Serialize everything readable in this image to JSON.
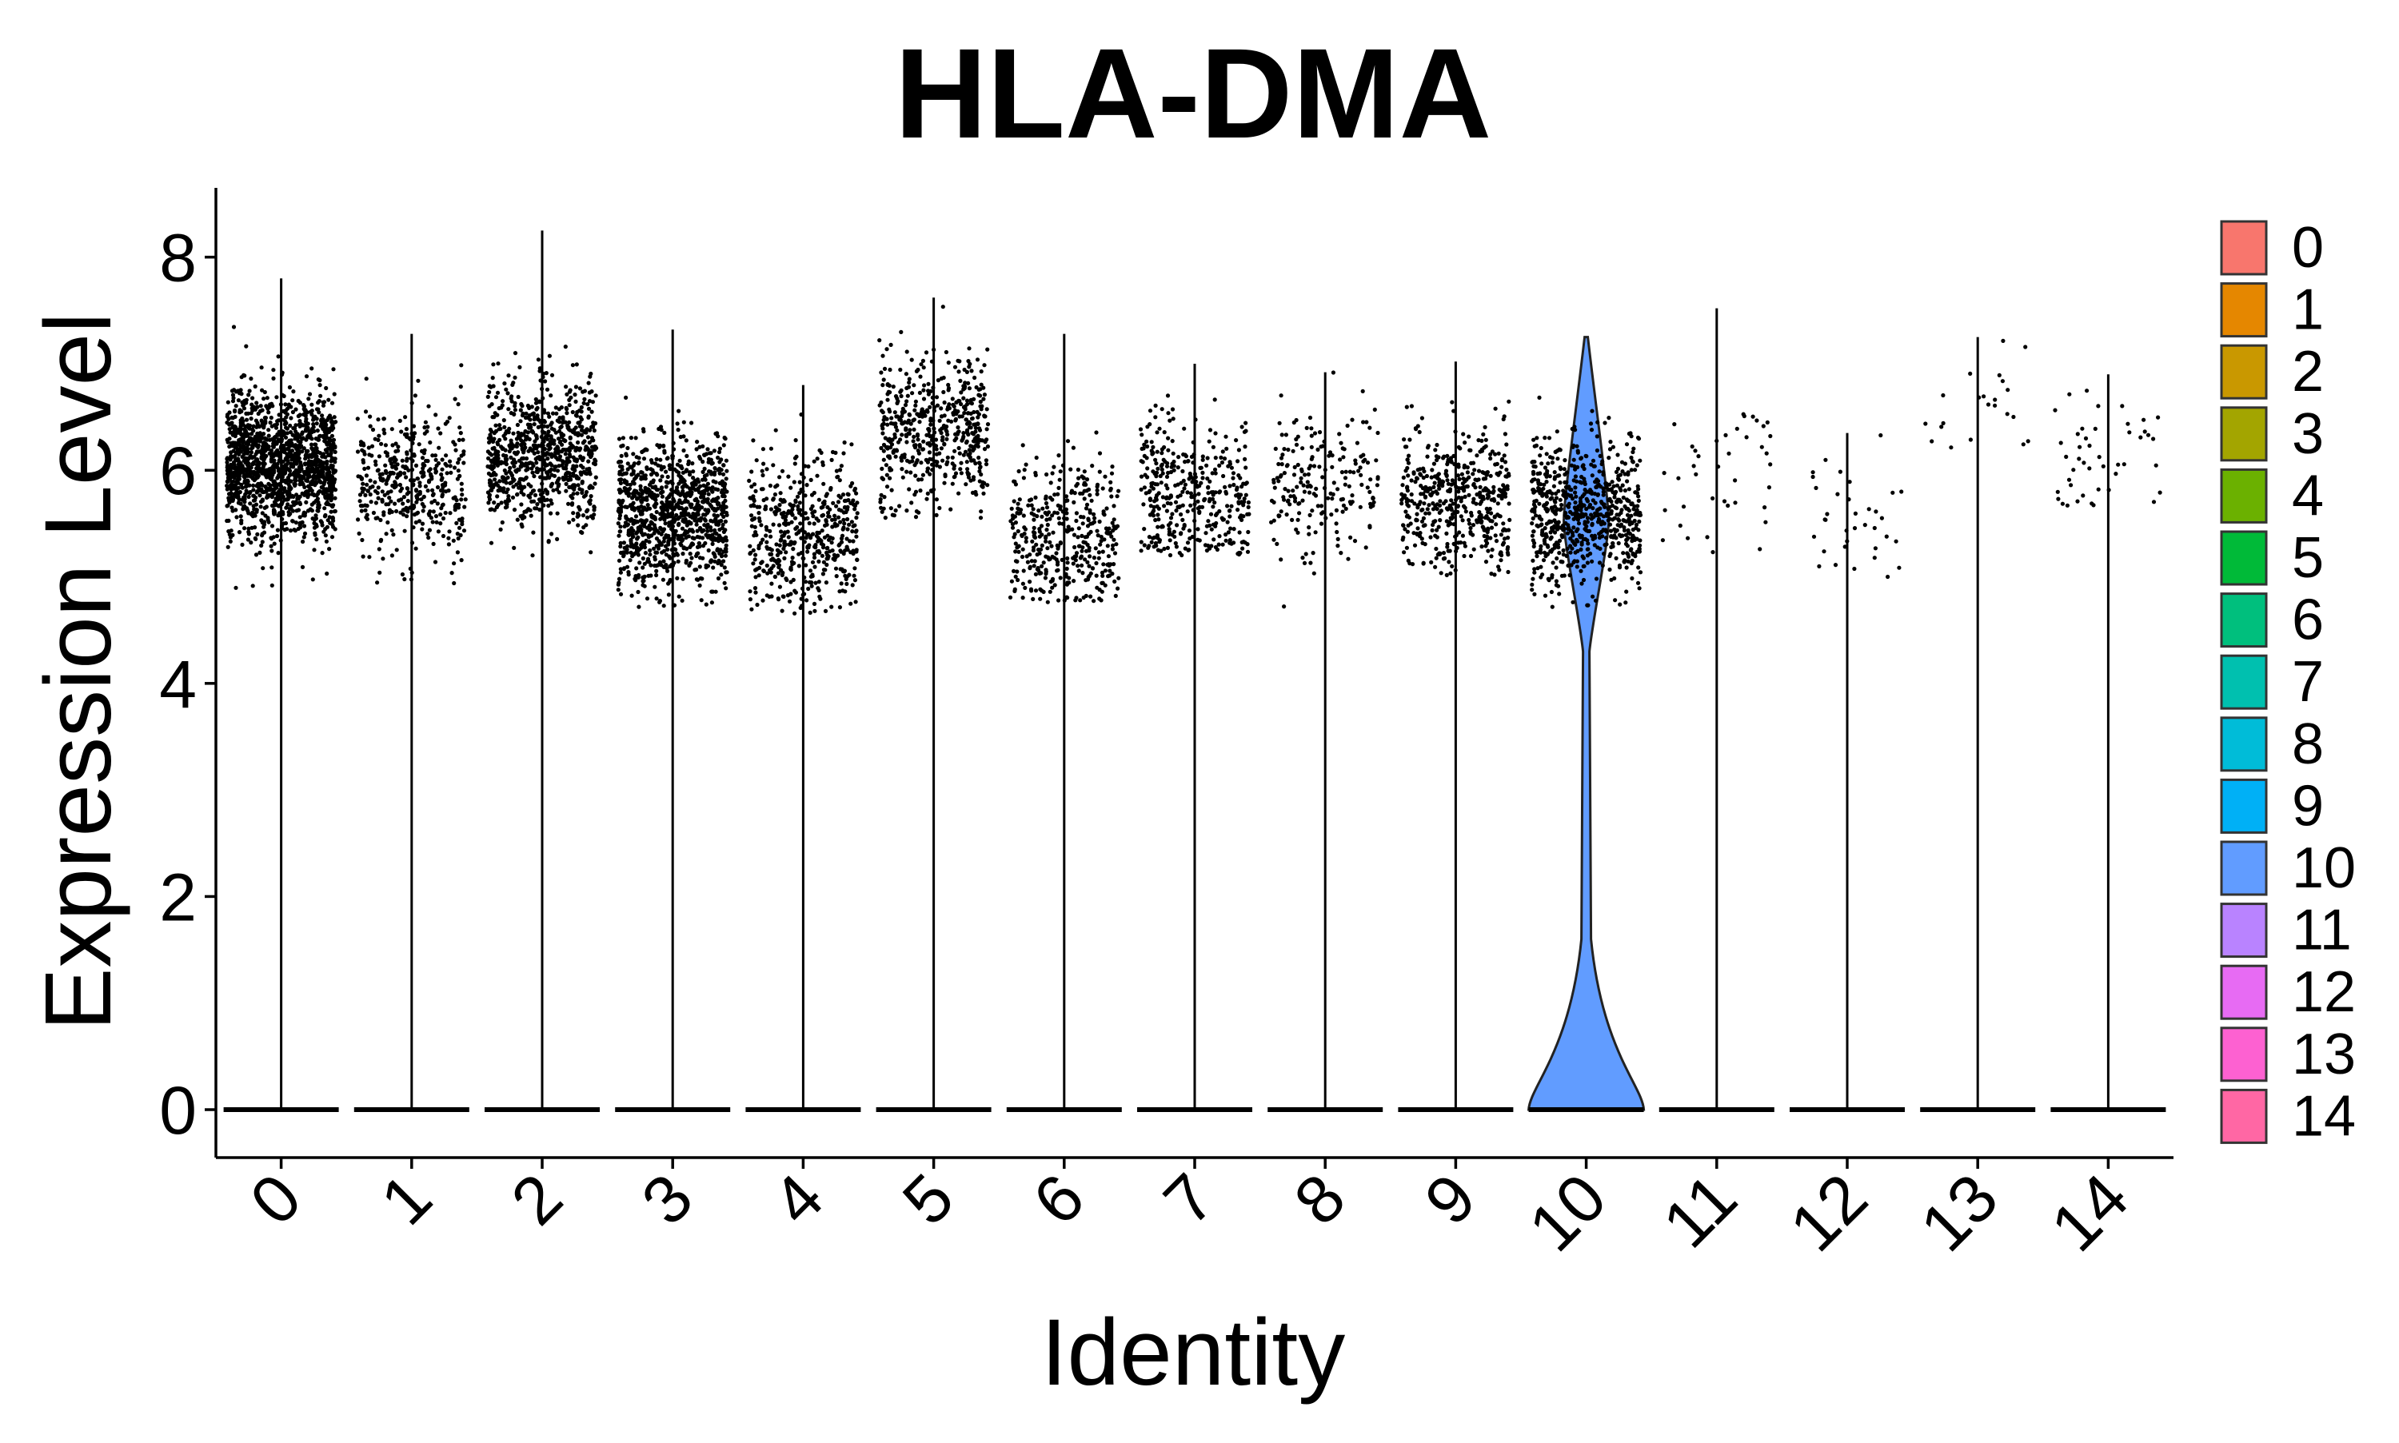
{
  "chart_data": {
    "type": "violin",
    "title": "HLA-DMA",
    "xlabel": "Identity",
    "ylabel": "Expression Level",
    "ylim": [
      -0.45,
      8.65
    ],
    "y_ticks": [
      0,
      2,
      4,
      6,
      8
    ],
    "categories": [
      "0",
      "1",
      "2",
      "3",
      "4",
      "5",
      "6",
      "7",
      "8",
      "9",
      "10",
      "11",
      "12",
      "13",
      "14"
    ],
    "colors": [
      "#F8766D",
      "#E58700",
      "#C99800",
      "#A3A500",
      "#6BB100",
      "#00BA38",
      "#00BF7D",
      "#00C0AF",
      "#00BCD8",
      "#00B0F6",
      "#619CFF",
      "#B983FF",
      "#E76BF3",
      "#FD61D1",
      "#FF67A4"
    ],
    "series": [
      {
        "cluster": "0",
        "max": 7.8,
        "cloud_center": 6.05,
        "cloud_low": 4.85,
        "cloud_high": 7.8,
        "points": 1500
      },
      {
        "cluster": "1",
        "max": 7.28,
        "cloud_center": 5.85,
        "cloud_low": 4.9,
        "cloud_high": 7.28,
        "points": 420
      },
      {
        "cluster": "2",
        "max": 8.25,
        "cloud_center": 6.15,
        "cloud_low": 5.2,
        "cloud_high": 8.25,
        "points": 800
      },
      {
        "cluster": "3",
        "max": 7.32,
        "cloud_center": 5.6,
        "cloud_low": 4.7,
        "cloud_high": 7.32,
        "points": 1000
      },
      {
        "cluster": "4",
        "max": 6.8,
        "cloud_center": 5.4,
        "cloud_low": 4.65,
        "cloud_high": 6.8,
        "points": 500
      },
      {
        "cluster": "5",
        "max": 7.62,
        "cloud_center": 6.35,
        "cloud_low": 5.55,
        "cloud_high": 7.62,
        "points": 520
      },
      {
        "cluster": "6",
        "max": 7.28,
        "cloud_center": 5.4,
        "cloud_low": 4.75,
        "cloud_high": 7.28,
        "points": 400
      },
      {
        "cluster": "7",
        "max": 7.0,
        "cloud_center": 5.75,
        "cloud_low": 5.2,
        "cloud_high": 7.0,
        "points": 380
      },
      {
        "cluster": "8",
        "max": 6.92,
        "cloud_center": 5.85,
        "cloud_low": 4.62,
        "cloud_high": 6.92,
        "points": 200
      },
      {
        "cluster": "9",
        "max": 7.02,
        "cloud_center": 5.75,
        "cloud_low": 5.0,
        "cloud_high": 7.02,
        "points": 480
      },
      {
        "cluster": "10",
        "max": 7.25,
        "cloud_center": 5.6,
        "cloud_low": 4.7,
        "cloud_high": 7.25,
        "points": 700
      },
      {
        "cluster": "11",
        "max": 7.52,
        "cloud_center": 6.0,
        "cloud_low": 5.2,
        "cloud_high": 7.52,
        "points": 40
      },
      {
        "cluster": "12",
        "max": 6.35,
        "cloud_center": 5.6,
        "cloud_low": 4.95,
        "cloud_high": 6.35,
        "points": 35
      },
      {
        "cluster": "13",
        "max": 7.25,
        "cloud_center": 6.6,
        "cloud_low": 6.2,
        "cloud_high": 7.25,
        "points": 22
      },
      {
        "cluster": "14",
        "max": 6.9,
        "cloud_center": 6.2,
        "cloud_low": 5.65,
        "cloud_high": 6.9,
        "points": 45
      }
    ],
    "legend_position": "right",
    "grid": false
  }
}
